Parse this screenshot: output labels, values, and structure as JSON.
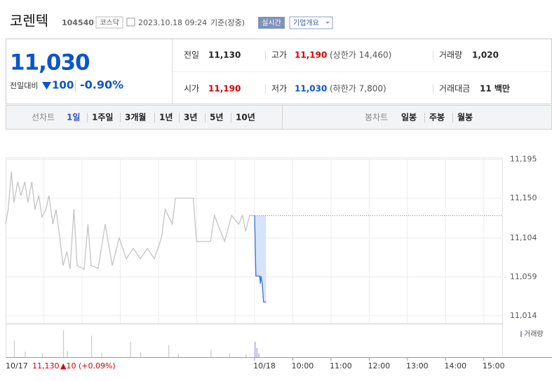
{
  "header": {
    "name": "코렌텍",
    "code": "104540",
    "market": "코스닥",
    "datetime": "2023.10.18 09:24",
    "basis": "기준(장중)",
    "realtime": "실시간",
    "company": "기업개요"
  },
  "price": {
    "current": "11,030",
    "change_label": "전일대비",
    "change": "100",
    "change_pct": "-0.90%"
  },
  "stats": [
    {
      "label": "전일",
      "value": "11,130"
    },
    {
      "label": "고가",
      "value": "11,190",
      "extra": "(상한가 14,460)"
    },
    {
      "label": "거래량",
      "value": "1,020"
    },
    {
      "label": "시가",
      "value": "11,190"
    },
    {
      "label": "저가",
      "value": "11,030",
      "extra": "(하한가 7,800)"
    },
    {
      "label": "거래대금",
      "value": "11 백만"
    }
  ],
  "tabs": {
    "line_label": "선차트",
    "line": [
      "1일",
      "1주일",
      "3개월",
      "1년",
      "3년",
      "5년",
      "10년"
    ],
    "candle_label": "봉차트",
    "candle": [
      "일봉",
      "주봉",
      "월봉"
    ]
  },
  "chart_data": {
    "type": "line",
    "xlim": [
      0,
      390
    ],
    "ylim": [
      11005,
      11197
    ],
    "yticks": [
      {
        "value": 11195,
        "label": "11,195"
      },
      {
        "value": 11150,
        "label": "11,150"
      },
      {
        "value": 11104,
        "label": "11,104"
      },
      {
        "value": 11059,
        "label": "11,059"
      },
      {
        "value": 11014,
        "label": "11,014"
      }
    ],
    "xticks": [
      {
        "value": 0,
        "label": "10/18"
      },
      {
        "value": 60,
        "label": "10:00"
      },
      {
        "value": 120,
        "label": "11:00"
      },
      {
        "value": 180,
        "label": "12:00"
      },
      {
        "value": 240,
        "label": "13:00"
      },
      {
        "value": 300,
        "label": "14:00"
      },
      {
        "value": 360,
        "label": "15:00"
      }
    ],
    "prev_xticks": [
      {
        "value": 0,
        "label": "10/17"
      }
    ],
    "prev_close": 11130,
    "prev_summary": {
      "close": "11,130",
      "change": "▲10 (+0.09%)"
    },
    "volume_label": "거래량",
    "volume_ylim": [
      0,
      100
    ],
    "series": [
      {
        "color": "#c4c4c4",
        "x": [
          0,
          4,
          9,
          13,
          19,
          24,
          30,
          35,
          41,
          46,
          52,
          57,
          63,
          68,
          74,
          79,
          85,
          90,
          96,
          101,
          107,
          112,
          123,
          129,
          134,
          145,
          156,
          167,
          178,
          189,
          200,
          211,
          222,
          233,
          244,
          250,
          261,
          266,
          294,
          299,
          321,
          327,
          343,
          354,
          365,
          371,
          376,
          382,
          390
        ],
        "values": [
          11120,
          11137,
          11181,
          11145,
          11169,
          11153,
          11169,
          11145,
          11169,
          11137,
          11153,
          11128,
          11137,
          11153,
          11120,
          11137,
          11104,
          11072,
          11088,
          11068,
          11137,
          11072,
          11068,
          11120,
          11072,
          11069,
          11120,
          11072,
          11104,
          11080,
          11092,
          11080,
          11092,
          11080,
          11104,
          11137,
          11120,
          11150,
          11150,
          11100,
          11100,
          11130,
          11100,
          11130,
          11120,
          11130,
          11112,
          11130,
          11130
        ]
      },
      {
        "color": "#3b73d6",
        "fill": "#d6e4fb",
        "x": [
          0,
          2,
          8,
          9,
          10,
          12,
          14,
          18
        ],
        "values": [
          11130,
          11060,
          11060,
          11051,
          11060,
          11051,
          11030,
          11030
        ]
      }
    ],
    "volume": [
      {
        "color": "#c9c9c9",
        "x": [
          13,
          30,
          57,
          90,
          96,
          134,
          150,
          195,
          211,
          255,
          270,
          321,
          350,
          376
        ],
        "values": [
          55,
          18,
          12,
          88,
          20,
          70,
          14,
          50,
          16,
          40,
          10,
          24,
          12,
          10
        ]
      },
      {
        "color": "#a58fd6",
        "x": [
          0,
          3,
          6
        ],
        "values": [
          50,
          30,
          12
        ]
      }
    ]
  }
}
